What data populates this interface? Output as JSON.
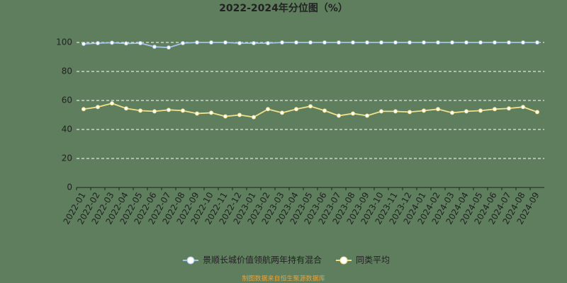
{
  "chart_data": {
    "type": "line",
    "title": "2022-2024年分位图（%）",
    "categories": [
      "2022-01",
      "2022-02",
      "2022-03",
      "2022-04",
      "2022-05",
      "2022-06",
      "2022-07",
      "2022-08",
      "2022-09",
      "2022-10",
      "2022-11",
      "2022-12",
      "2023-01",
      "2023-02",
      "2023-03",
      "2023-04",
      "2023-05",
      "2023-06",
      "2023-07",
      "2023-08",
      "2023-09",
      "2023-10",
      "2023-11",
      "2023-12",
      "2024-01",
      "2024-02",
      "2024-03",
      "2024-04",
      "2024-05",
      "2024-06",
      "2024-07",
      "2024-08",
      "2024-09"
    ],
    "series": [
      {
        "name": "景顺长城价值领航两年持有混合",
        "color": "#a8c4e8",
        "values": [
          99,
          99.5,
          99.8,
          99.3,
          99.5,
          97,
          96.5,
          99.5,
          100,
          100,
          100,
          99.5,
          99.5,
          99.5,
          100,
          100,
          100,
          100,
          100,
          100,
          100,
          100,
          100,
          100,
          100,
          100,
          100,
          100,
          100,
          100,
          100,
          100,
          100
        ]
      },
      {
        "name": "同类平均",
        "color": "#f0e08a",
        "values": [
          54,
          55.5,
          58,
          54.5,
          53,
          52.5,
          53.5,
          53,
          51,
          51.5,
          49,
          50,
          48.5,
          54,
          51.5,
          54,
          56,
          53,
          49.5,
          51,
          49.5,
          52.5,
          52.5,
          52,
          53,
          54,
          51.5,
          52.5,
          53,
          54,
          54.5,
          55.5,
          52
        ]
      }
    ],
    "ylim": [
      0,
      100
    ],
    "yticks": [
      0,
      20,
      40,
      60,
      80,
      100
    ],
    "grid": true,
    "source": "制图数据来自恒生聚源数据库"
  }
}
